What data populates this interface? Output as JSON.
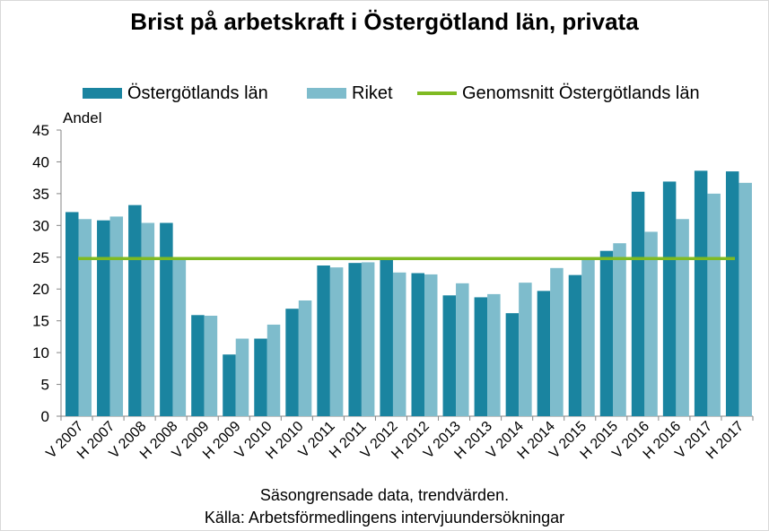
{
  "chart_data": {
    "type": "bar",
    "title": "Brist på arbetskraft i Östergötland län, privata",
    "ylabel": "Andel",
    "ylim": [
      0,
      45
    ],
    "yticks": [
      "0",
      "5",
      "10",
      "15",
      "20",
      "25",
      "30",
      "35",
      "40",
      "45"
    ],
    "grid": false,
    "legend_position": "top",
    "categories": [
      "V 2007",
      "H 2007",
      "V 2008",
      "H 2008",
      "V 2009",
      "H 2009",
      "V 2010",
      "H 2010",
      "V 2011",
      "H 2011",
      "V 2012",
      "H 2012",
      "V 2013",
      "H 2013",
      "V 2014",
      "H 2014",
      "V 2015",
      "H 2015",
      "V 2016",
      "H 2016",
      "V 2017",
      "H 2017"
    ],
    "series": [
      {
        "name": "Östergötlands län",
        "color": "#1a84a0",
        "values": [
          32.1,
          30.8,
          33.2,
          30.4,
          15.9,
          9.7,
          12.2,
          16.9,
          23.7,
          24.1,
          24.6,
          22.5,
          19.0,
          18.7,
          16.2,
          19.7,
          22.2,
          26.0,
          35.3,
          36.9,
          38.6,
          38.5
        ]
      },
      {
        "name": "Riket",
        "color": "#7ebccc",
        "values": [
          31.0,
          31.4,
          30.4,
          25.0,
          15.8,
          12.2,
          14.4,
          18.2,
          23.4,
          24.2,
          22.6,
          22.3,
          20.9,
          19.2,
          21.0,
          23.3,
          24.9,
          27.2,
          29.0,
          31.0,
          35.0,
          36.7
        ]
      }
    ],
    "reference_line": {
      "name": "Genomsnitt Östergötlands län",
      "color": "#7fba22",
      "value": 24.8
    },
    "footnote_1": "Säsongrensade data, trendvärden.",
    "footnote_2": "Källa: Arbetsförmedlingens intervjuundersökningar"
  }
}
